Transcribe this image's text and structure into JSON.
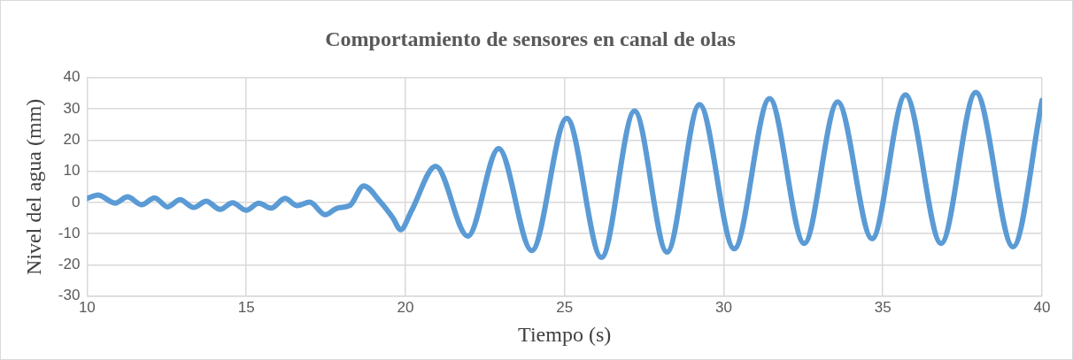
{
  "chart_data": {
    "type": "line",
    "title": "Comportamiento de sensores en canal de olas",
    "xlabel": "Tiempo (s)",
    "ylabel": "Nivel del agua (mm)",
    "x": [
      10,
      10.34,
      10.88,
      11.27,
      11.71,
      12.12,
      12.53,
      12.92,
      13.35,
      13.74,
      14.18,
      14.57,
      15.0,
      15.39,
      15.78,
      16.22,
      16.6,
      16.99,
      17.48,
      17.86,
      18.25,
      18.69,
      19.22,
      19.61,
      19.85,
      20.19,
      20.95,
      21.96,
      22.93,
      23.97,
      25.07,
      26.16,
      27.2,
      28.22,
      29.24,
      30.33,
      31.44,
      32.53,
      33.58,
      34.66,
      35.71,
      36.83,
      37.92,
      39.09,
      40
    ],
    "series": [
      {
        "color": "#5b9bd5",
        "values": [
          1.3,
          2.4,
          -0.2,
          1.8,
          -0.7,
          1.5,
          -1.4,
          0.9,
          -1.6,
          0.4,
          -2.2,
          -0.1,
          -2.5,
          -0.2,
          -1.8,
          1.3,
          -1.0,
          0.1,
          -3.9,
          -1.8,
          -1.0,
          5.3,
          0.1,
          -5.0,
          -8.7,
          -2.7,
          11.6,
          -10.8,
          17.3,
          -15.4,
          27,
          -17.6,
          29.3,
          -15.9,
          31.4,
          -14.8,
          33.3,
          -13.1,
          32.2,
          -11.6,
          34.5,
          -13.1,
          35.3,
          -14.2,
          32.7
        ]
      }
    ],
    "xlim": [
      10,
      40
    ],
    "xticks": [
      10,
      15,
      20,
      25,
      30,
      35,
      40
    ],
    "ylim": [
      -30,
      40
    ],
    "yticks": [
      -30,
      -20,
      -10,
      0,
      10,
      20,
      30,
      40
    ],
    "grid": true,
    "marker": "none",
    "line_style": "solid"
  }
}
